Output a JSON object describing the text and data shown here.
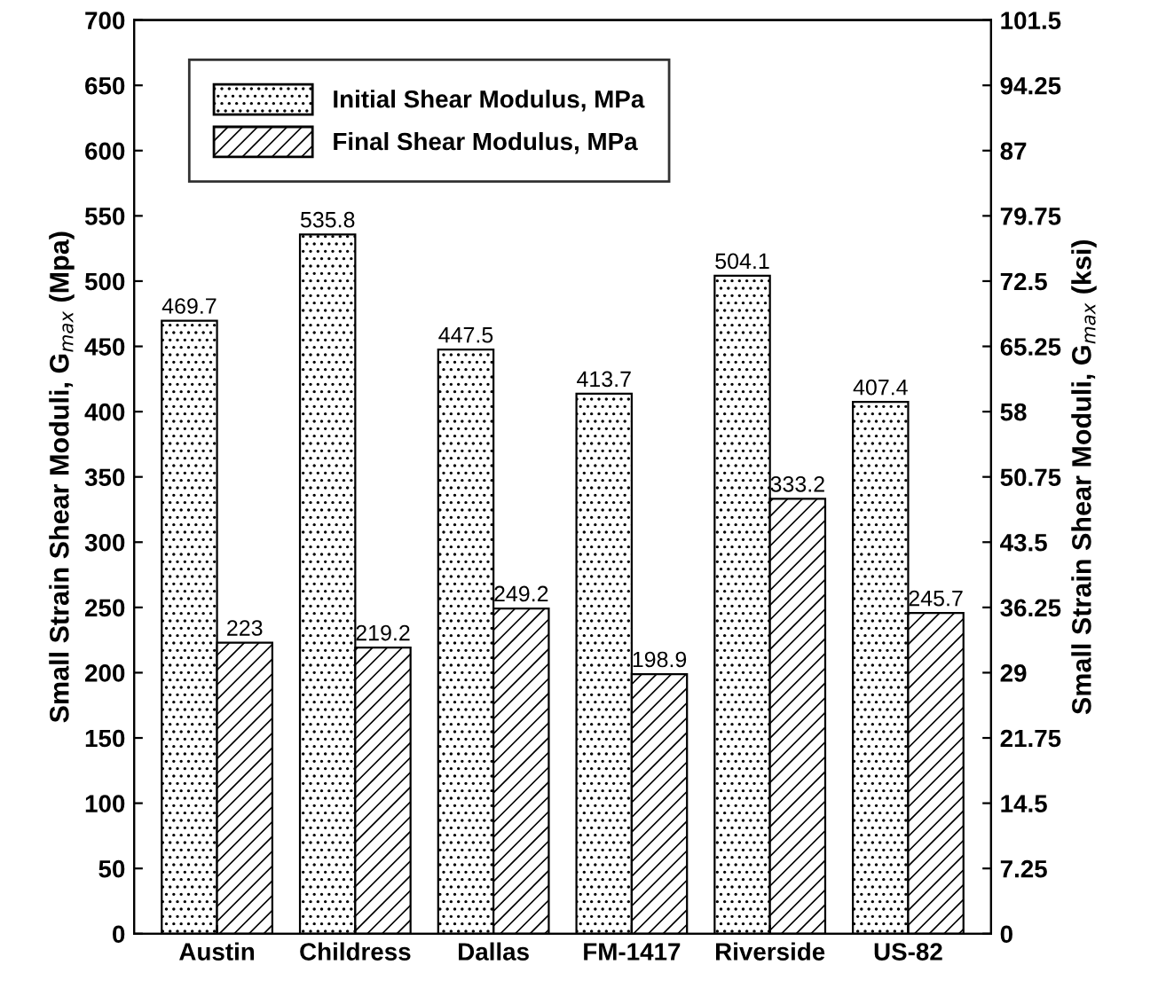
{
  "chart_data": {
    "type": "bar",
    "ylabel": "Small Strain Shear Moduli, G$_{max}$ (Mpa)",
    "y2label": "Small Strain Shear Moduli, G$_{max}$ (ksi)",
    "categories": [
      "Austin",
      "Childress",
      "Dallas",
      "FM-1417",
      "Riverside",
      "US-82"
    ],
    "series": [
      {
        "name": "Initial Shear Modulus, MPa",
        "color": "#000000",
        "values": [
          469.7,
          535.8,
          447.5,
          413.7,
          504.1,
          407.4
        ]
      },
      {
        "name": "Final Shear Modulus, MPa",
        "color": "#000000",
        "values": [
          223,
          219.2,
          249.2,
          198.9,
          333.2,
          245.7
        ]
      }
    ],
    "ylim": [
      0,
      700
    ],
    "yticks": [
      0,
      50,
      100,
      150,
      200,
      250,
      300,
      350,
      400,
      450,
      500,
      550,
      600,
      650,
      700
    ],
    "y2lim": [
      0,
      101.5
    ],
    "y2ticks": [
      0,
      7.25,
      14.5,
      21.75,
      29,
      36.25,
      43.5,
      50.75,
      58,
      65.25,
      72.5,
      79.75,
      87,
      94.25,
      101.5
    ],
    "data_labels": true,
    "legend": "top left",
    "grid": false
  }
}
